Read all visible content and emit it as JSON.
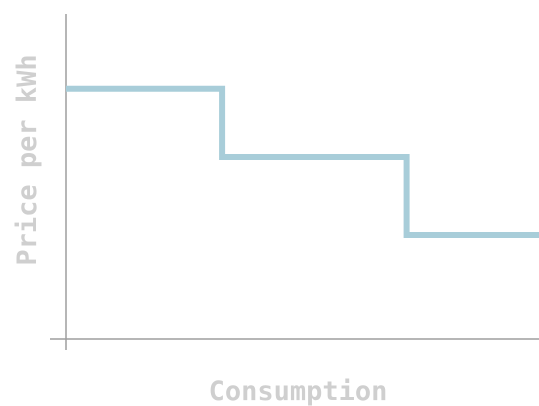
{
  "chart_data": {
    "type": "line",
    "step": true,
    "xlabel": "Consumption",
    "ylabel": "Price per kWh",
    "x_ticks": false,
    "y_ticks": false,
    "grid": false,
    "xlim": [
      0,
      100
    ],
    "ylim": [
      0,
      100
    ],
    "series": [
      {
        "color": "#a8cdd9",
        "points": [
          {
            "x": 0,
            "y": 77
          },
          {
            "x": 33,
            "y": 77
          },
          {
            "x": 33,
            "y": 56
          },
          {
            "x": 72,
            "y": 56
          },
          {
            "x": 72,
            "y": 32
          },
          {
            "x": 100,
            "y": 32
          }
        ]
      }
    ],
    "colors": {
      "axis": "#9e9e9e",
      "axis_label": "#cfcfcf"
    }
  }
}
